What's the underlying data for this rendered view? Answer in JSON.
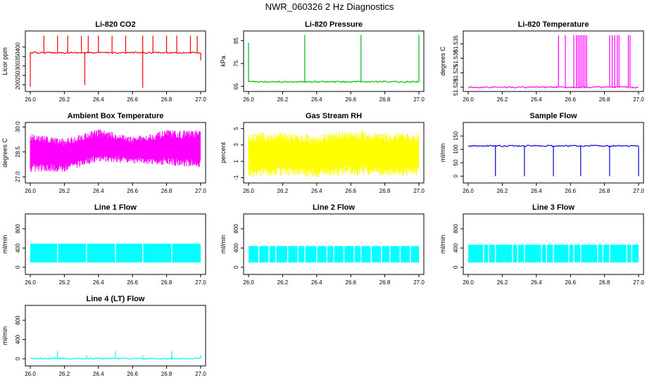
{
  "title": "NWR_060326  2 Hz Diagnostics",
  "chart_data": [
    {
      "type": "line",
      "title": "Li-820 CO2",
      "ylabel": "Licor ppm",
      "xlim": [
        26.0,
        27.0
      ],
      "ylim": [
        180,
        470
      ],
      "x_ticks": [
        "26.0",
        "26.2",
        "26.4",
        "26.6",
        "26.8",
        "27.0"
      ],
      "y_ticks": [
        200,
        250,
        300,
        350,
        400
      ],
      "color": "#ff0000",
      "style": "baseline-spikes",
      "baseline": 370,
      "spikes": [
        {
          "x": 26.0,
          "y": 190
        },
        {
          "x": 26.08,
          "y": 460
        },
        {
          "x": 26.16,
          "y": 460
        },
        {
          "x": 26.22,
          "y": 460
        },
        {
          "x": 26.3,
          "y": 460
        },
        {
          "x": 26.32,
          "y": 200
        },
        {
          "x": 26.34,
          "y": 460
        },
        {
          "x": 26.4,
          "y": 460
        },
        {
          "x": 26.48,
          "y": 460
        },
        {
          "x": 26.56,
          "y": 460
        },
        {
          "x": 26.66,
          "y": 460
        },
        {
          "x": 26.66,
          "y": 185
        },
        {
          "x": 26.72,
          "y": 460
        },
        {
          "x": 26.8,
          "y": 460
        },
        {
          "x": 26.86,
          "y": 460
        },
        {
          "x": 26.94,
          "y": 460
        },
        {
          "x": 26.98,
          "y": 460
        },
        {
          "x": 27.0,
          "y": 330
        }
      ]
    },
    {
      "type": "line",
      "title": "Li-820 Pressure",
      "ylabel": "kPa",
      "xlim": [
        26.0,
        27.0
      ],
      "ylim": [
        64,
        88
      ],
      "x_ticks": [
        "26.0",
        "26.2",
        "26.4",
        "26.6",
        "26.8",
        "27.0"
      ],
      "y_ticks": [
        65,
        75,
        85
      ],
      "color": "#00c000",
      "style": "baseline-spikes",
      "baseline": 67,
      "spikes": [
        {
          "x": 26.0,
          "y": 84
        },
        {
          "x": 26.33,
          "y": 87.5
        },
        {
          "x": 26.66,
          "y": 87.5
        },
        {
          "x": 27.0,
          "y": 87.5
        }
      ]
    },
    {
      "type": "line",
      "title": "Li-820 Temperature",
      "ylabel": "degrees C",
      "xlim": [
        26.0,
        27.0
      ],
      "ylim": [
        51.5195,
        51.5385
      ],
      "x_ticks": [
        "26.0",
        "26.2",
        "26.4",
        "26.6",
        "26.8",
        "27.0"
      ],
      "y_ticks": [
        "51.520",
        "51.525",
        "51.530",
        "51.535"
      ],
      "y_tick_values": [
        51.52,
        51.525,
        51.53,
        51.535
      ],
      "color": "#ff00ff",
      "style": "baseline-spikes",
      "baseline": 51.52,
      "spikes": [
        {
          "x": 26.53,
          "y": 51.538
        },
        {
          "x": 26.57,
          "y": 51.538
        },
        {
          "x": 26.62,
          "y": 51.538
        },
        {
          "x": 26.635,
          "y": 51.538
        },
        {
          "x": 26.645,
          "y": 51.538
        },
        {
          "x": 26.655,
          "y": 51.538
        },
        {
          "x": 26.665,
          "y": 51.538
        },
        {
          "x": 26.675,
          "y": 51.538
        },
        {
          "x": 26.685,
          "y": 51.538
        },
        {
          "x": 26.695,
          "y": 51.538
        },
        {
          "x": 26.83,
          "y": 51.538
        },
        {
          "x": 26.845,
          "y": 51.538
        },
        {
          "x": 26.86,
          "y": 51.538
        },
        {
          "x": 26.875,
          "y": 51.538
        },
        {
          "x": 26.885,
          "y": 51.538
        },
        {
          "x": 26.94,
          "y": 51.538
        },
        {
          "x": 26.95,
          "y": 51.538
        }
      ]
    },
    {
      "type": "line",
      "title": "Ambient Box Temperature",
      "ylabel": "degrees C",
      "xlim": [
        26.0,
        27.0
      ],
      "ylim": [
        26.8,
        30.1
      ],
      "x_ticks": [
        "26.0",
        "26.2",
        "26.4",
        "26.6",
        "26.8",
        "27.0"
      ],
      "y_ticks": [
        "27.0",
        "28.5",
        "30.0"
      ],
      "y_tick_values": [
        27.0,
        28.5,
        30.0
      ],
      "color": "#ff00ff",
      "style": "noise-band",
      "band": [
        {
          "x": 26.0,
          "lo": 27.3,
          "hi": 29.6
        },
        {
          "x": 26.2,
          "lo": 27.3,
          "hi": 29.3
        },
        {
          "x": 26.4,
          "lo": 27.9,
          "hi": 29.9
        },
        {
          "x": 26.6,
          "lo": 27.8,
          "hi": 29.4
        },
        {
          "x": 26.8,
          "lo": 27.7,
          "hi": 29.8
        },
        {
          "x": 27.0,
          "lo": 27.5,
          "hi": 29.8
        }
      ]
    },
    {
      "type": "line",
      "title": "Gas Stream RH",
      "ylabel": "percent",
      "xlim": [
        26.0,
        27.0
      ],
      "ylim": [
        -1.3,
        5.4
      ],
      "x_ticks": [
        "26.0",
        "26.2",
        "26.4",
        "26.6",
        "26.8",
        "27.0"
      ],
      "y_ticks": [
        -1,
        1,
        3,
        5
      ],
      "color": "#ffff00",
      "style": "noise-band",
      "band": [
        {
          "x": 26.0,
          "lo": -0.9,
          "hi": 4.4
        },
        {
          "x": 26.2,
          "lo": -0.8,
          "hi": 4.6
        },
        {
          "x": 26.4,
          "lo": -0.9,
          "hi": 4.2
        },
        {
          "x": 26.6,
          "lo": -0.7,
          "hi": 4.8
        },
        {
          "x": 26.8,
          "lo": -0.8,
          "hi": 4.5
        },
        {
          "x": 27.0,
          "lo": -0.8,
          "hi": 4.4
        }
      ]
    },
    {
      "type": "line",
      "title": "Sample Flow",
      "ylabel": "ml/min",
      "xlim": [
        26.0,
        27.0
      ],
      "ylim": [
        -15,
        190
      ],
      "x_ticks": [
        "26.0",
        "26.2",
        "26.4",
        "26.6",
        "26.8",
        "27.0"
      ],
      "y_ticks": [
        0,
        50,
        100,
        150
      ],
      "color": "#0000e0",
      "style": "baseline-spikes",
      "baseline": 113,
      "spikes": [
        {
          "x": 26.16,
          "y": 0
        },
        {
          "x": 26.33,
          "y": 0
        },
        {
          "x": 26.5,
          "y": 0
        },
        {
          "x": 26.66,
          "y": 0
        },
        {
          "x": 26.83,
          "y": 0
        },
        {
          "x": 27.0,
          "y": 0
        }
      ]
    },
    {
      "type": "line",
      "title": "Line 1 Flow",
      "ylabel": "ml/min",
      "xlim": [
        26.0,
        27.0
      ],
      "ylim": [
        -90,
        1050
      ],
      "x_ticks": [
        "26.0",
        "26.2",
        "26.4",
        "26.6",
        "26.8",
        "27.0"
      ],
      "y_ticks": [
        0,
        400,
        800
      ],
      "color": "#00ffff",
      "style": "block",
      "lo": 100,
      "hi": 490,
      "gaps": [
        26.16,
        26.33,
        26.5,
        26.66,
        26.83
      ]
    },
    {
      "type": "line",
      "title": "Line 2 Flow",
      "ylabel": "ml/min",
      "xlim": [
        26.0,
        27.0
      ],
      "ylim": [
        -90,
        1050
      ],
      "x_ticks": [
        "26.0",
        "26.2",
        "26.4",
        "26.6",
        "26.8",
        "27.0"
      ],
      "y_ticks": [
        0,
        400,
        800
      ],
      "color": "#00ffff",
      "style": "block",
      "lo": 100,
      "hi": 440,
      "gaps": [
        26.06,
        26.12,
        26.16,
        26.23,
        26.29,
        26.33,
        26.4,
        26.46,
        26.5,
        26.56,
        26.62,
        26.66,
        26.72,
        26.78,
        26.83,
        26.89,
        26.95
      ]
    },
    {
      "type": "line",
      "title": "Line 3 Flow",
      "ylabel": "ml/min",
      "xlim": [
        26.0,
        27.0
      ],
      "ylim": [
        -90,
        1050
      ],
      "x_ticks": [
        "26.0",
        "26.2",
        "26.4",
        "26.6",
        "26.8",
        "27.0"
      ],
      "y_ticks": [
        0,
        400,
        800
      ],
      "color": "#00ffff",
      "style": "block",
      "lo": 100,
      "hi": 470,
      "gaps": [
        26.09,
        26.12,
        26.16,
        26.26,
        26.29,
        26.33,
        26.43,
        26.46,
        26.5,
        26.59,
        26.62,
        26.66,
        26.76,
        26.79,
        26.83,
        26.93,
        26.96
      ]
    },
    {
      "type": "line",
      "title": "Line 4 (LT) Flow",
      "ylabel": "ml/min",
      "xlim": [
        26.0,
        27.0
      ],
      "ylim": [
        -90,
        1050
      ],
      "x_ticks": [
        "26.0",
        "26.2",
        "26.4",
        "26.6",
        "26.8",
        "27.0"
      ],
      "y_ticks": [
        0,
        400,
        800
      ],
      "color": "#00ffff",
      "style": "baseline-spikes",
      "baseline": 5,
      "spikes": [
        {
          "x": 26.16,
          "y": 170
        },
        {
          "x": 26.33,
          "y": 70
        },
        {
          "x": 26.5,
          "y": 170
        },
        {
          "x": 26.66,
          "y": 70
        },
        {
          "x": 26.83,
          "y": 160
        },
        {
          "x": 27.0,
          "y": 80
        }
      ]
    }
  ]
}
